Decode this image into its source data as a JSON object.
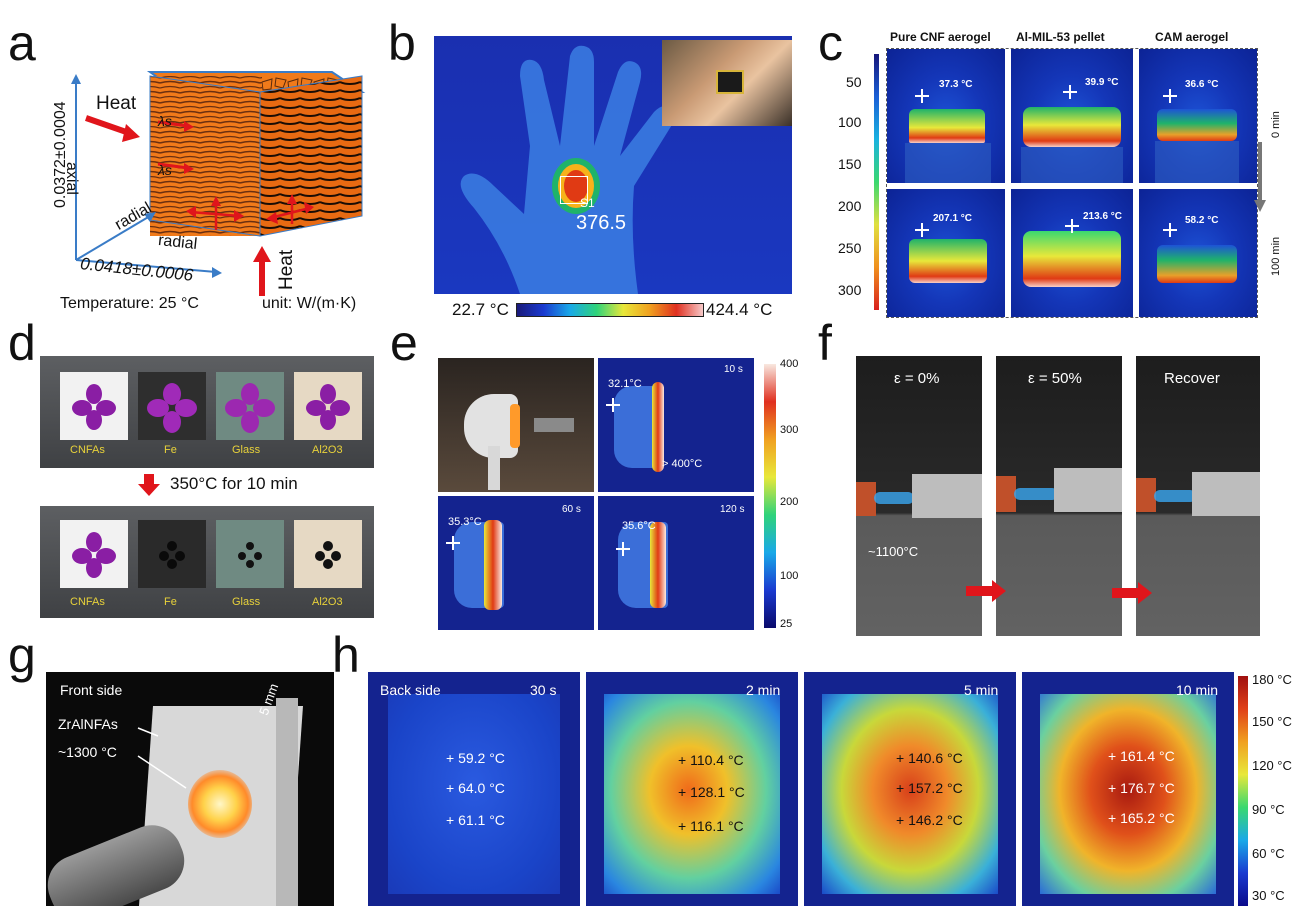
{
  "panel_labels": {
    "a": "a",
    "b": "b",
    "c": "c",
    "d": "d",
    "e": "e",
    "f": "f",
    "g": "g",
    "h": "h"
  },
  "a": {
    "heat_left": "Heat",
    "heat_bottom": "Heat",
    "lambda_s": "λs",
    "lambda_s2": "λs",
    "axial": "axial",
    "radial1": "radial",
    "radial2": "radial",
    "axial_value": "0.0372±0.0004",
    "radial_value": "0.0418±0.0006",
    "temperature": "Temperature: 25 °C",
    "unit": "unit: W/(m·K)",
    "colors": {
      "cube_orange": "#f07a1a",
      "arrow_red": "#e0151b",
      "axis_blue": "#3a7cc7"
    }
  },
  "b": {
    "reading": "376.5",
    "marker": "S1",
    "scale_min": "22.7 °C",
    "scale_max": "424.4 °C"
  },
  "c": {
    "columns": [
      "Pure CNF aerogel",
      "Al-MIL-53 pellet",
      "CAM aerogel"
    ],
    "y_ticks": [
      "50",
      "100",
      "150",
      "200",
      "250",
      "300"
    ],
    "top_row": [
      "37.3 °C",
      "39.9 °C",
      "36.6 °C"
    ],
    "bottom_row": [
      "207.1 °C",
      "213.6 °C",
      "58.2 °C"
    ],
    "time_start": "0 min",
    "time_end": "100 min"
  },
  "d": {
    "samples": [
      "CNFAs",
      "Fe",
      "Glass",
      "Al2O3"
    ],
    "treatment": "350°C for 10 min"
  },
  "e": {
    "frames": [
      {
        "time": "10 s",
        "min": "32.1°C",
        "max": "> 400°C"
      },
      {
        "time": "60 s",
        "min": "35.3°C"
      },
      {
        "time": "120 s",
        "min": "35.6°C"
      }
    ],
    "scale_ticks": [
      "400",
      "300",
      "200",
      "100",
      "25"
    ]
  },
  "f": {
    "frames": [
      "ε = 0%",
      "ε = 50%",
      "Recover"
    ],
    "flame_temp": "~1100°C"
  },
  "g": {
    "title": "Front side",
    "material": "ZrAlNFAs",
    "temperature": "~1300 °C",
    "thickness": "5 mm"
  },
  "h": {
    "side_label": "Back side",
    "frames": [
      {
        "time": "30 s",
        "values": [
          "+ 59.2 °C",
          "+ 64.0 °C",
          "+ 61.1 °C"
        ]
      },
      {
        "time": "2 min",
        "values": [
          "+ 110.4 °C",
          "+ 128.1 °C",
          "+ 116.1 °C"
        ]
      },
      {
        "time": "5 min",
        "values": [
          "+ 140.6 °C",
          "+ 157.2 °C",
          "+ 146.2 °C"
        ]
      },
      {
        "time": "10 min",
        "values": [
          "+ 161.4 °C",
          "+ 176.7 °C",
          "+ 165.2 °C"
        ]
      }
    ],
    "scale_ticks": [
      "180 °C",
      "150 °C",
      "120 °C",
      "90 °C",
      "60 °C",
      "30 °C"
    ]
  }
}
